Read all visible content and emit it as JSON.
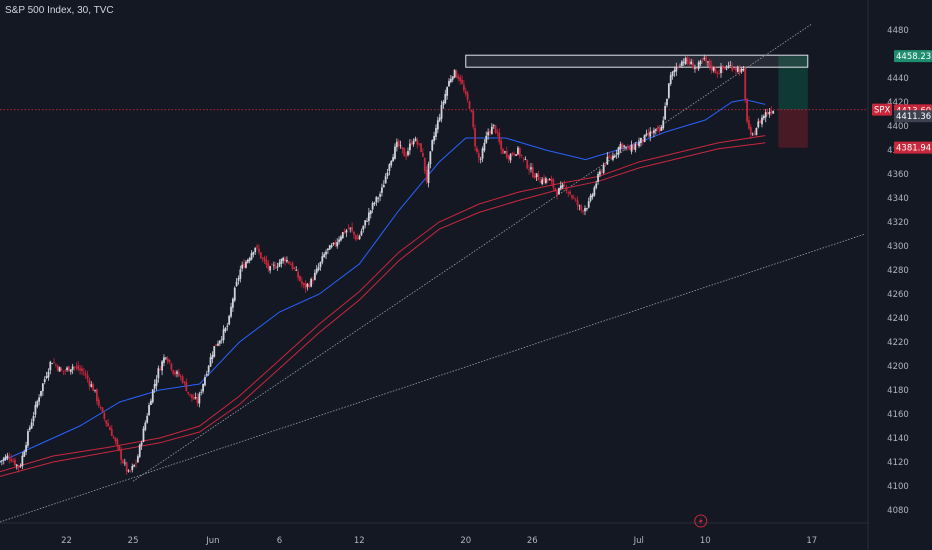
{
  "header": {
    "title": "S&P 500 Index, 30, TVC"
  },
  "chart_data": {
    "type": "candlestick",
    "symbol": "SPX",
    "ylim": [
      4070,
      4505
    ],
    "y_ticks": [
      4080,
      4100,
      4120,
      4140,
      4160,
      4180,
      4200,
      4220,
      4240,
      4260,
      4280,
      4300,
      4320,
      4340,
      4360,
      4380,
      4400,
      4420,
      4440,
      4480
    ],
    "x_range": [
      0,
      65
    ],
    "x_ticks": [
      {
        "label": "22",
        "x": 5
      },
      {
        "label": "25",
        "x": 10
      },
      {
        "label": "Jun",
        "x": 16
      },
      {
        "label": "6",
        "x": 21
      },
      {
        "label": "12",
        "x": 27
      },
      {
        "label": "20",
        "x": 35
      },
      {
        "label": "26",
        "x": 40
      },
      {
        "label": "Jul",
        "x": 48
      },
      {
        "label": "10",
        "x": 53
      },
      {
        "label": "17",
        "x": 61
      }
    ],
    "price_tags": {
      "target": {
        "value": 4458.23,
        "label": "4458.23",
        "color": "#1e8e6e"
      },
      "last": {
        "value": 4413.6,
        "label": "4413.60",
        "symbol": "SPX",
        "color": "#c9273c"
      },
      "prev": {
        "value": 4411.36,
        "label": "4411.36",
        "color": "#3d4150"
      },
      "stop": {
        "value": 4381.94,
        "label": "4381.94",
        "color": "#c9273c"
      }
    },
    "price_path": [
      [
        0,
        4120
      ],
      [
        0.8,
        4125
      ],
      [
        1.6,
        4115
      ],
      [
        2.4,
        4150
      ],
      [
        3.2,
        4180
      ],
      [
        4,
        4205
      ],
      [
        4.8,
        4195
      ],
      [
        5.6,
        4200
      ],
      [
        6.4,
        4195
      ],
      [
        7.2,
        4180
      ],
      [
        7.8,
        4160
      ],
      [
        8.5,
        4145
      ],
      [
        9.2,
        4125
      ],
      [
        9.8,
        4110
      ],
      [
        10.4,
        4120
      ],
      [
        11,
        4150
      ],
      [
        11.5,
        4175
      ],
      [
        12,
        4195
      ],
      [
        12.6,
        4210
      ],
      [
        13.2,
        4195
      ],
      [
        13.8,
        4190
      ],
      [
        14.4,
        4175
      ],
      [
        15,
        4170
      ],
      [
        15.5,
        4190
      ],
      [
        16.2,
        4215
      ],
      [
        16.8,
        4225
      ],
      [
        17.3,
        4235
      ],
      [
        17.6,
        4255
      ],
      [
        18.2,
        4280
      ],
      [
        18.8,
        4290
      ],
      [
        19.3,
        4300
      ],
      [
        19.8,
        4290
      ],
      [
        20.4,
        4280
      ],
      [
        21,
        4285
      ],
      [
        21.5,
        4290
      ],
      [
        22,
        4285
      ],
      [
        22.5,
        4275
      ],
      [
        23,
        4265
      ],
      [
        23.5,
        4270
      ],
      [
        24,
        4280
      ],
      [
        24.6,
        4295
      ],
      [
        25.2,
        4300
      ],
      [
        25.8,
        4310
      ],
      [
        26.4,
        4315
      ],
      [
        27,
        4305
      ],
      [
        27.6,
        4320
      ],
      [
        28.2,
        4335
      ],
      [
        28.8,
        4345
      ],
      [
        29.4,
        4370
      ],
      [
        30,
        4385
      ],
      [
        30.6,
        4375
      ],
      [
        31.2,
        4390
      ],
      [
        31.8,
        4380
      ],
      [
        32.2,
        4355
      ],
      [
        32.6,
        4385
      ],
      [
        33.2,
        4410
      ],
      [
        33.8,
        4435
      ],
      [
        34.2,
        4445
      ],
      [
        34.7,
        4440
      ],
      [
        35.1,
        4425
      ],
      [
        35.5,
        4415
      ],
      [
        35.9,
        4380
      ],
      [
        36.2,
        4370
      ],
      [
        36.8,
        4395
      ],
      [
        37.3,
        4400
      ],
      [
        37.8,
        4380
      ],
      [
        38.4,
        4375
      ],
      [
        39,
        4380
      ],
      [
        39.6,
        4370
      ],
      [
        40.2,
        4360
      ],
      [
        40.8,
        4355
      ],
      [
        41.4,
        4355
      ],
      [
        42,
        4345
      ],
      [
        42.6,
        4350
      ],
      [
        43.2,
        4340
      ],
      [
        43.8,
        4330
      ],
      [
        44.4,
        4335
      ],
      [
        45,
        4355
      ],
      [
        45.6,
        4370
      ],
      [
        46.2,
        4375
      ],
      [
        46.8,
        4385
      ],
      [
        47.4,
        4380
      ],
      [
        48,
        4385
      ],
      [
        48.6,
        4390
      ],
      [
        49.2,
        4395
      ],
      [
        49.8,
        4395
      ],
      [
        50.5,
        4440
      ],
      [
        51,
        4450
      ],
      [
        51.5,
        4455
      ],
      [
        52,
        4452
      ],
      [
        52.5,
        4448
      ],
      [
        53,
        4455
      ],
      [
        53.5,
        4450
      ],
      [
        54,
        4445
      ],
      [
        54.5,
        4448
      ],
      [
        55,
        4450
      ],
      [
        55.5,
        4448
      ],
      [
        56,
        4445
      ],
      [
        56.2,
        4410
      ],
      [
        56.6,
        4388
      ],
      [
        57,
        4400
      ],
      [
        57.6,
        4410
      ],
      [
        58.2,
        4414
      ]
    ],
    "ema_short": [
      [
        0,
        4120
      ],
      [
        3,
        4135
      ],
      [
        6,
        4150
      ],
      [
        9,
        4170
      ],
      [
        12,
        4180
      ],
      [
        15,
        4185
      ],
      [
        18,
        4220
      ],
      [
        21,
        4245
      ],
      [
        24,
        4260
      ],
      [
        27,
        4285
      ],
      [
        30,
        4330
      ],
      [
        33,
        4370
      ],
      [
        35,
        4390
      ],
      [
        38,
        4390
      ],
      [
        41,
        4380
      ],
      [
        44,
        4372
      ],
      [
        47,
        4382
      ],
      [
        50,
        4395
      ],
      [
        53,
        4405
      ],
      [
        55,
        4420
      ],
      [
        56,
        4422
      ],
      [
        57.5,
        4418
      ]
    ],
    "ema_mid": [
      [
        0,
        4112
      ],
      [
        4,
        4125
      ],
      [
        8,
        4132
      ],
      [
        12,
        4140
      ],
      [
        15,
        4150
      ],
      [
        18,
        4175
      ],
      [
        21,
        4205
      ],
      [
        24,
        4235
      ],
      [
        27,
        4262
      ],
      [
        30,
        4295
      ],
      [
        33,
        4320
      ],
      [
        36,
        4335
      ],
      [
        39,
        4345
      ],
      [
        42,
        4352
      ],
      [
        45,
        4358
      ],
      [
        48,
        4370
      ],
      [
        51,
        4378
      ],
      [
        54,
        4386
      ],
      [
        57.5,
        4392
      ]
    ],
    "ema_long": [
      [
        0,
        4108
      ],
      [
        4,
        4120
      ],
      [
        8,
        4128
      ],
      [
        12,
        4136
      ],
      [
        15,
        4145
      ],
      [
        18,
        4168
      ],
      [
        21,
        4198
      ],
      [
        24,
        4228
      ],
      [
        27,
        4255
      ],
      [
        30,
        4288
      ],
      [
        33,
        4314
      ],
      [
        36,
        4328
      ],
      [
        39,
        4338
      ],
      [
        42,
        4347
      ],
      [
        45,
        4354
      ],
      [
        48,
        4365
      ],
      [
        51,
        4373
      ],
      [
        54,
        4381
      ],
      [
        57.5,
        4386
      ]
    ],
    "resistance_box": {
      "x1": 35.0,
      "x2": 60.7,
      "y_low": 4449,
      "y_high": 4459
    },
    "position": {
      "x1": 58.5,
      "x2": 60.7,
      "entry": 4413.6,
      "target": 4458.23,
      "stop": 4381.94
    },
    "trendline_upper": {
      "p1": [
        10,
        4104
      ],
      "p2": [
        61,
        4485
      ]
    },
    "trendline_lower": {
      "p1": [
        0,
        4070
      ],
      "p2": [
        65,
        4310
      ]
    }
  },
  "colors": {
    "background": "#141823",
    "candle": "#d1d4dc",
    "candle_down": "#c9273c",
    "ema_blue": "#2962ff",
    "ema_red": "#c9273c",
    "long_green": "#0f3b36",
    "long_red": "#4a1a26",
    "trend": "#9aa0ad"
  },
  "footer": {
    "icon": "lightning-icon"
  }
}
